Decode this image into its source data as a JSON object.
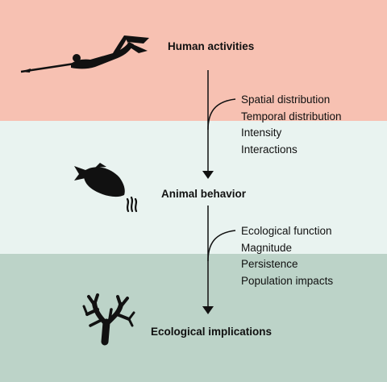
{
  "stages": {
    "human": "Human activities",
    "animal": "Animal behavior",
    "ecological": "Ecological implications"
  },
  "human_to_animal": [
    "Spatial distribution",
    "Temporal distribution",
    "Intensity",
    "Interactions"
  ],
  "animal_to_ecological": [
    "Ecological function",
    "Magnitude",
    "Persistence",
    "Population impacts"
  ],
  "icons": [
    "spearfisher-icon",
    "fish-icon",
    "coral-icon"
  ],
  "colors": {
    "top_band": "#f7c1b2",
    "middle_band": "#e9f3f0",
    "bottom_band": "#bcd3c8"
  }
}
